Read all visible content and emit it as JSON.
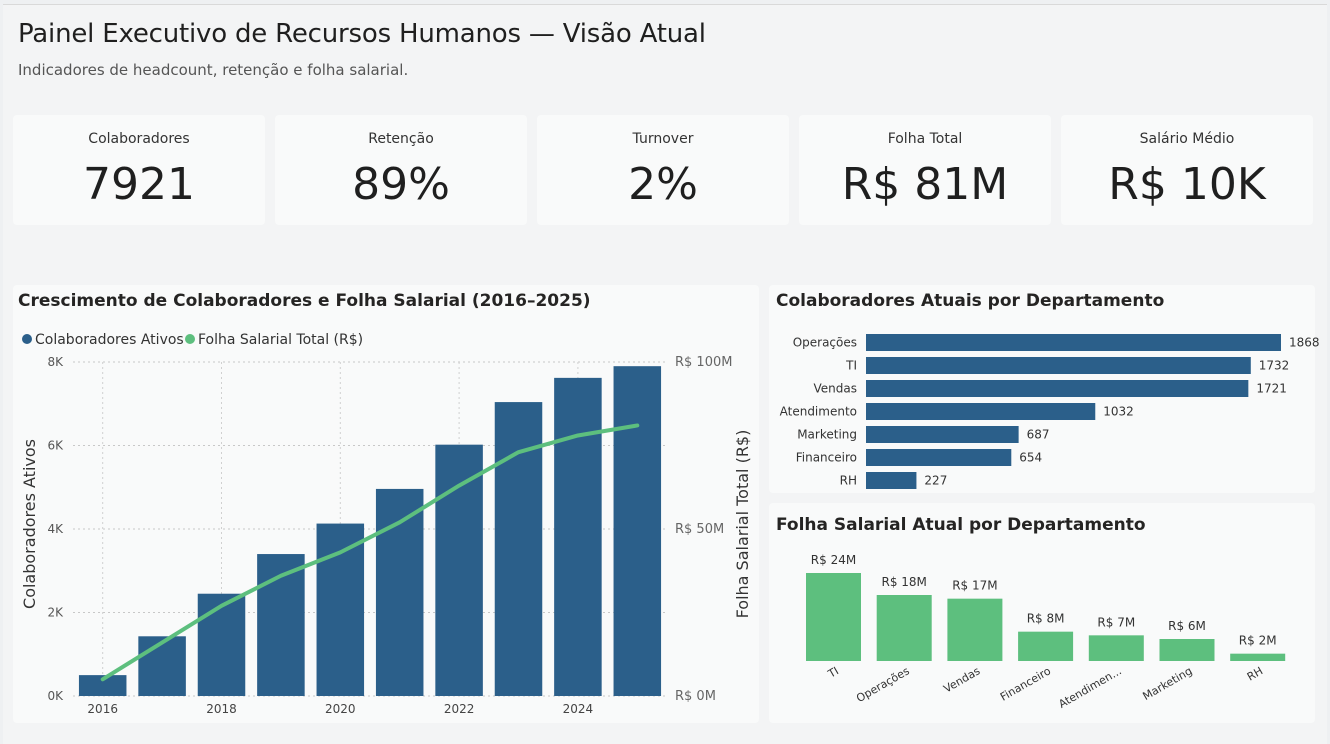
{
  "header": {
    "title": "Painel Executivo de Recursos Humanos — Visão Atual",
    "subtitle": "Indicadores de headcount, retenção e folha salarial."
  },
  "kpis": [
    {
      "label": "Colaboradores",
      "value": "7921"
    },
    {
      "label": "Retenção",
      "value": "89%"
    },
    {
      "label": "Turnover",
      "value": "2%"
    },
    {
      "label": "Folha Total",
      "value": "R$ 81M"
    },
    {
      "label": "Salário Médio",
      "value": "R$ 10K"
    }
  ],
  "colors": {
    "bar_blue": "#2b5f8a",
    "line_green": "#5dbf7e"
  },
  "chart_data": [
    {
      "type": "bar",
      "title": "Crescimento de Colaboradores e Folha Salarial (2016–2025)",
      "legend": [
        "Colaboradores Ativos",
        "Folha Salarial Total (R$)"
      ],
      "legend_placement": "top-left",
      "x": [
        2016,
        2017,
        2018,
        2019,
        2020,
        2021,
        2022,
        2023,
        2024,
        2025
      ],
      "x_ticks": [
        "2016",
        "2018",
        "2020",
        "2022",
        "2024"
      ],
      "series": [
        {
          "name": "Colaboradores Ativos",
          "type": "bar",
          "axis": "left",
          "values": [
            500,
            1430,
            2450,
            3400,
            4130,
            4960,
            6020,
            7040,
            7620,
            7900
          ]
        },
        {
          "name": "Folha Salarial Total (R$)",
          "type": "line",
          "axis": "right",
          "values": [
            5000000,
            16000000,
            27000000,
            36000000,
            43000000,
            52000000,
            63000000,
            73000000,
            78000000,
            81000000
          ]
        }
      ],
      "ylabel": "Colaboradores Ativos",
      "y2label": "Folha Salarial Total (R$)",
      "ylim": [
        0,
        8000
      ],
      "y_ticks": [
        {
          "v": 0,
          "t": "0K"
        },
        {
          "v": 2000,
          "t": "2K"
        },
        {
          "v": 4000,
          "t": "4K"
        },
        {
          "v": 6000,
          "t": "6K"
        },
        {
          "v": 8000,
          "t": "8K"
        }
      ],
      "y2lim": [
        0,
        100000000
      ],
      "y2_ticks": [
        {
          "v": 0,
          "t": "R$ 0M"
        },
        {
          "v": 50000000,
          "t": "R$ 50M"
        },
        {
          "v": 100000000,
          "t": "R$ 100M"
        }
      ],
      "grid": true
    },
    {
      "type": "bar",
      "orientation": "horizontal",
      "title": "Colaboradores Atuais por Departamento",
      "categories": [
        "Operações",
        "TI",
        "Vendas",
        "Atendimento",
        "Marketing",
        "Financeiro",
        "RH"
      ],
      "values": [
        1868,
        1732,
        1721,
        1032,
        687,
        654,
        227
      ],
      "labels": [
        "1868",
        "1732",
        "1721",
        "1032",
        "687",
        "654",
        "227"
      ],
      "xlim": [
        0,
        1868
      ]
    },
    {
      "type": "bar",
      "title": "Folha Salarial Atual por Departamento",
      "categories": [
        "TI",
        "Operações",
        "Vendas",
        "Financeiro",
        "Atendimen...",
        "Marketing",
        "RH"
      ],
      "values": [
        24000000,
        18000000,
        17000000,
        8000000,
        7000000,
        6000000,
        2000000
      ],
      "labels": [
        "R$ 24M",
        "R$ 18M",
        "R$ 17M",
        "R$ 8M",
        "R$ 7M",
        "R$ 6M",
        "R$ 2M"
      ],
      "ylim": [
        0,
        24000000
      ]
    }
  ]
}
